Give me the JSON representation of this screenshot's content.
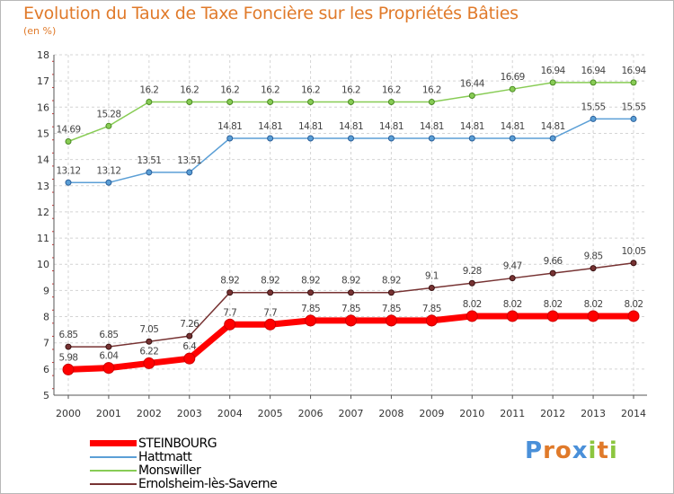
{
  "chart_data": {
    "type": "line",
    "title": "Evolution du Taux de Taxe Foncière sur les Propriétés Bâties",
    "ylabel": "(en %)",
    "xlabel": "",
    "x": [
      "2000",
      "2001",
      "2002",
      "2003",
      "2004",
      "2005",
      "2006",
      "2007",
      "2008",
      "2009",
      "2010",
      "2011",
      "2012",
      "2013",
      "2014"
    ],
    "ylim": [
      5,
      18
    ],
    "yticks": [
      "5",
      "6",
      "7",
      "8",
      "9",
      "10",
      "11",
      "12",
      "13",
      "14",
      "15",
      "16",
      "17",
      "18"
    ],
    "grid": true,
    "legend_position": "bottom-left",
    "series": [
      {
        "name": "STEINBOURG",
        "color": "#ff0000",
        "values": [
          5.98,
          6.04,
          6.22,
          6.4,
          7.7,
          7.7,
          7.85,
          7.85,
          7.85,
          7.85,
          8.02,
          8.02,
          8.02,
          8.02,
          8.02
        ],
        "labels": [
          "5.98",
          "6.04",
          "6.22",
          "6.4",
          "7.7",
          "7.7",
          "7.85",
          "7.85",
          "7.85",
          "7.85",
          "8.02",
          "8.02",
          "8.02",
          "8.02",
          "8.02"
        ]
      },
      {
        "name": "Hattmatt",
        "color": "#5b9fd6",
        "values": [
          13.12,
          13.12,
          13.51,
          13.51,
          14.81,
          14.81,
          14.81,
          14.81,
          14.81,
          14.81,
          14.81,
          14.81,
          14.81,
          15.55,
          15.55
        ],
        "labels": [
          "13.12",
          "13.12",
          "13.51",
          "13.51",
          "14.81",
          "14.81",
          "14.81",
          "14.81",
          "14.81",
          "14.81",
          "14.81",
          "14.81",
          "14.81",
          "15.55",
          "15.55"
        ]
      },
      {
        "name": "Monswiller",
        "color": "#88cc55",
        "values": [
          14.69,
          15.28,
          16.2,
          16.2,
          16.2,
          16.2,
          16.2,
          16.2,
          16.2,
          16.2,
          16.44,
          16.69,
          16.94,
          16.94,
          16.94
        ],
        "labels": [
          "14.69",
          "15.28",
          "16.2",
          "16.2",
          "16.2",
          "16.2",
          "16.2",
          "16.2",
          "16.2",
          "16.2",
          "16.44",
          "16.69",
          "16.94",
          "16.94",
          "16.94"
        ]
      },
      {
        "name": "Ernolsheim-lès-Saverne",
        "color": "#773333",
        "values": [
          6.85,
          6.85,
          7.05,
          7.26,
          8.92,
          8.92,
          8.92,
          8.92,
          8.92,
          9.1,
          9.28,
          9.47,
          9.66,
          9.85,
          10.05
        ],
        "labels": [
          "6.85",
          "6.85",
          "7.05",
          "7.26",
          "8.92",
          "8.92",
          "8.92",
          "8.92",
          "8.92",
          "9.1",
          "9.28",
          "9.47",
          "9.66",
          "9.85",
          "10.05"
        ]
      }
    ]
  },
  "logo": {
    "text": "Proxiti",
    "letters": [
      "P",
      "r",
      "o",
      "x",
      "i",
      "t",
      "i"
    ],
    "colors": [
      "#4a90d9",
      "#e07a2a",
      "#e07a2a",
      "#4a90d9",
      "#8cc63f",
      "#e07a2a",
      "#8cc63f"
    ]
  }
}
